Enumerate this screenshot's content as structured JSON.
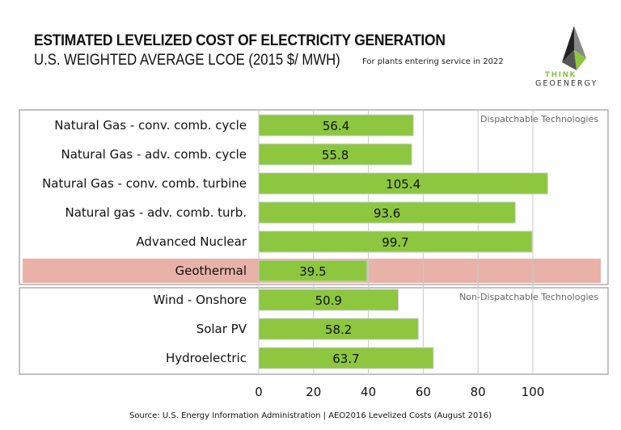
{
  "chart_data": {
    "type": "bar",
    "orientation": "horizontal",
    "title": "ESTIMATED LEVELIZED COST OF ELECTRICITY GENERATION",
    "subtitle": "U.S. WEIGHTED AVERAGE LCOE (2015 $/ MWH)",
    "note": "For plants entering service in 2022",
    "categories": [
      "Natural Gas - conv. comb. cycle",
      "Natural Gas - adv. comb. cycle",
      "Natural Gas - conv. comb. turbine",
      "Natural gas - adv. comb. turb.",
      "Advanced Nuclear",
      "Geothermal",
      "Wind - Onshore",
      "Solar PV",
      "Hydroelectric"
    ],
    "values": [
      56.4,
      55.8,
      105.4,
      93.6,
      99.7,
      39.5,
      50.9,
      58.2,
      63.7
    ],
    "labels": [
      "56.4",
      "55.8",
      "105.4",
      "93.6",
      "99.7",
      "39.5",
      "50.9",
      "58.2",
      "63.7"
    ],
    "groups": [
      {
        "label": "Dispatchable Technologies",
        "count": 6
      },
      {
        "label": "Non-Dispatchable Technologies",
        "count": 3
      }
    ],
    "highlight": "Geothermal",
    "xticks": [
      "0",
      "20",
      "40",
      "60",
      "80",
      "100"
    ],
    "xlim": [
      0,
      126
    ],
    "grid": true,
    "colors": {
      "bar": "#8dc63f",
      "highlight_row": "#e8b2a8",
      "grid": "#c8c8c8"
    },
    "source": "Source: U.S. Energy Information Administration | AEO2016 Levelized Costs (August 2016)"
  },
  "logo": {
    "line1": "THINK",
    "line2": "GEOENERGY"
  }
}
